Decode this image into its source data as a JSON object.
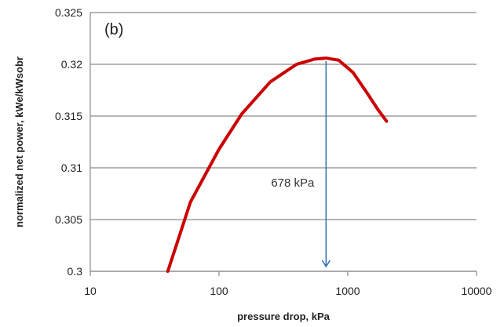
{
  "chart_data": {
    "type": "line",
    "panel_label": "(b)",
    "xlabel": "pressure drop, kPa",
    "ylabel": "normalized net power, kWe/kWsobr",
    "xscale": "log",
    "xlim": [
      10,
      10000
    ],
    "ylim": [
      0.3,
      0.325
    ],
    "xticks": [
      10,
      100,
      1000,
      10000
    ],
    "xtick_labels": [
      "10",
      "100",
      "1000",
      "10000"
    ],
    "yticks": [
      0.3,
      0.305,
      0.31,
      0.315,
      0.32,
      0.325
    ],
    "ytick_labels": [
      "0.3",
      "0.305",
      "0.31",
      "0.315",
      "0.32",
      "0.325"
    ],
    "grid": "horizontal",
    "series": [
      {
        "color": "#cc0000",
        "x": [
          40,
          60,
          100,
          150,
          250,
          400,
          550,
          678,
          850,
          1100,
          1400,
          1700,
          2000
        ],
        "y": [
          0.3,
          0.3067,
          0.3118,
          0.3152,
          0.3183,
          0.32,
          0.3205,
          0.3206,
          0.3204,
          0.3192,
          0.3173,
          0.3157,
          0.3145
        ]
      }
    ],
    "annotation": {
      "text": "678 kPa",
      "x": 678,
      "y_top": 0.3203,
      "y_bottom": 0.3,
      "color": "#2f6fb0"
    }
  }
}
